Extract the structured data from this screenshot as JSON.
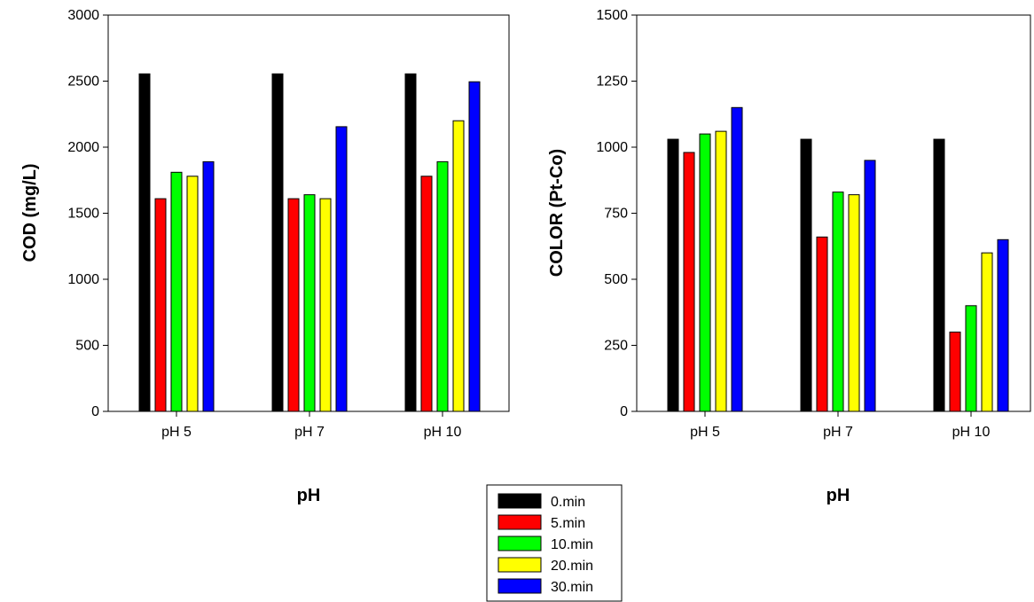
{
  "chart_data": [
    {
      "type": "bar",
      "categories": [
        "pH 5",
        "pH 7",
        "pH 10"
      ],
      "xlabel": "pH",
      "ylabel": "COD (mg/L)",
      "ylim": [
        0,
        3000
      ],
      "yticks": [
        0,
        500,
        1000,
        1500,
        2000,
        2500,
        3000
      ],
      "grid": false,
      "series": [
        {
          "name": "0.min",
          "values": [
            2555,
            2555,
            2555
          ]
        },
        {
          "name": "5.min",
          "values": [
            1610,
            1610,
            1780
          ]
        },
        {
          "name": "10.min",
          "values": [
            1810,
            1640,
            1890
          ]
        },
        {
          "name": "20.min",
          "values": [
            1780,
            1610,
            2200
          ]
        },
        {
          "name": "30.min",
          "values": [
            1890,
            2155,
            2495
          ]
        }
      ]
    },
    {
      "type": "bar",
      "categories": [
        "pH 5",
        "pH 7",
        "pH 10"
      ],
      "xlabel": "pH",
      "ylabel": "COLOR (Pt-Co)",
      "ylim": [
        0,
        1500
      ],
      "yticks": [
        0,
        250,
        500,
        750,
        1000,
        1250,
        1500
      ],
      "grid": false,
      "series": [
        {
          "name": "0.min",
          "values": [
            1030,
            1030,
            1030
          ]
        },
        {
          "name": "5.min",
          "values": [
            980,
            660,
            300
          ]
        },
        {
          "name": "10.min",
          "values": [
            1050,
            830,
            400
          ]
        },
        {
          "name": "20.min",
          "values": [
            1060,
            820,
            600
          ]
        },
        {
          "name": "30.min",
          "values": [
            1150,
            950,
            650
          ]
        }
      ]
    }
  ],
  "legend": {
    "placement": "bottom-center",
    "entries": [
      {
        "label": "0.min",
        "color": "#000000"
      },
      {
        "label": "5.min",
        "color": "#ff0000"
      },
      {
        "label": "10.min",
        "color": "#00ff00"
      },
      {
        "label": "20.min",
        "color": "#ffff00"
      },
      {
        "label": "30.min",
        "color": "#0000ff"
      }
    ]
  },
  "series_colors": [
    "#000000",
    "#ff0000",
    "#00ff00",
    "#ffff00",
    "#0000ff"
  ]
}
